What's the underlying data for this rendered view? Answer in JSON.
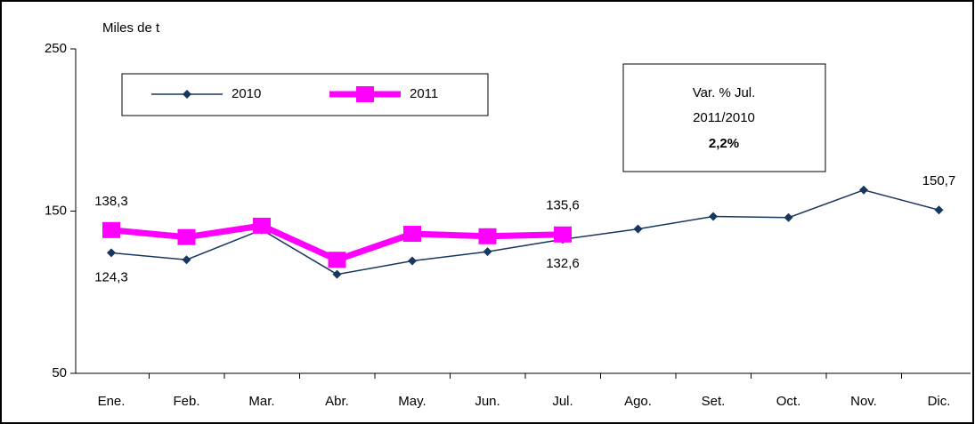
{
  "chart_data": {
    "type": "line",
    "y_label": "Miles de t",
    "categories": [
      "Ene.",
      "Feb.",
      "Mar.",
      "Abr.",
      "May.",
      "Jun.",
      "Jul.",
      "Ago.",
      "Set.",
      "Oct.",
      "Nov.",
      "Dic."
    ],
    "series": [
      {
        "name": "2010",
        "color": "#17375e",
        "values": [
          124.3,
          120,
          138.5,
          111,
          119.3,
          125,
          132.6,
          139,
          146.7,
          146,
          163,
          150.7
        ],
        "value_labels": [
          "124,3",
          null,
          null,
          null,
          null,
          null,
          "132,6",
          null,
          null,
          null,
          null,
          "150,7"
        ]
      },
      {
        "name": "2011",
        "color": "#ff00ff",
        "values": [
          138.3,
          134,
          141,
          120,
          136,
          134.5,
          135.6,
          null,
          null,
          null,
          null,
          null
        ],
        "value_labels": [
          "138,3",
          null,
          null,
          null,
          null,
          null,
          "135,6",
          null,
          null,
          null,
          null,
          null
        ]
      }
    ],
    "annotation": [
      "Var. % Jul.",
      "2011/2010",
      "2,2%"
    ],
    "ylim": [
      50,
      250
    ],
    "yticks": [
      50,
      150,
      250
    ]
  }
}
